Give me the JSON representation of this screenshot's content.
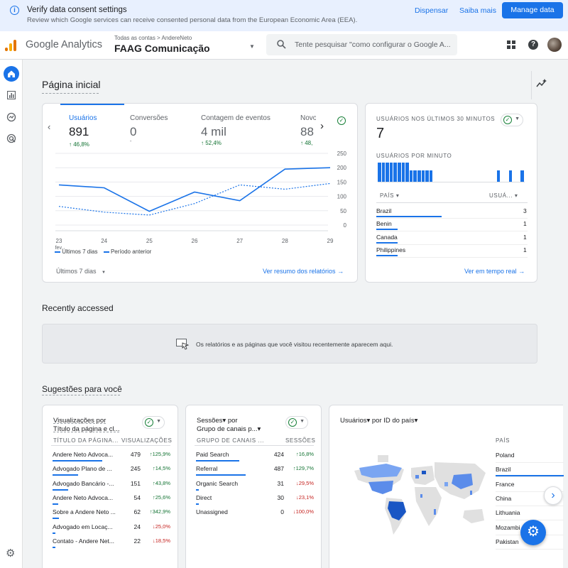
{
  "banner": {
    "title": "Verify data consent settings",
    "subtitle": "Review which Google services can receive consented personal data from the European Economic Area (EEA).",
    "dismiss": "Dispensar",
    "learn": "Saiba mais",
    "manage": "Manage data"
  },
  "header": {
    "app": "Google Analytics",
    "crumb": "Todas as contas > AndereNeto",
    "property": "FAAG Comunicação",
    "search_placeholder": "Tente pesquisar \"como configurar o Google A..."
  },
  "page_title": "Página inicial",
  "metrics": [
    {
      "label": "Usuários",
      "value": "891",
      "delta": "↑ 46,8%"
    },
    {
      "label": "Conversões",
      "value": "0",
      "delta": "-"
    },
    {
      "label": "Contagem de eventos",
      "value": "4 mil",
      "delta": "↑ 52,4%"
    },
    {
      "label": "Novo",
      "value": "88",
      "delta": "↑ 48,"
    }
  ],
  "chart_data": {
    "type": "line",
    "x": [
      "23 fev.",
      "24",
      "25",
      "26",
      "27",
      "28",
      "29"
    ],
    "xticks": [
      "23",
      "24",
      "25",
      "26",
      "27",
      "28",
      "29"
    ],
    "xsub": "fev.",
    "yticks": [
      "250",
      "200",
      "150",
      "100",
      "50",
      "0"
    ],
    "ylim": [
      0,
      250
    ],
    "series": [
      {
        "name": "Últimos 7 dias",
        "values": [
          140,
          130,
          48,
          115,
          85,
          195,
          200
        ]
      },
      {
        "name": "Período anterior",
        "values": [
          65,
          45,
          35,
          75,
          140,
          125,
          145
        ]
      }
    ]
  },
  "legend": {
    "current": "Últimos 7 dias",
    "previous": "Período anterior"
  },
  "range_label": "Últimos 7 dias",
  "view_reports": "Ver resumo dos relatórios",
  "realtime": {
    "title": "USUÁRIOS NOS ÚLTIMOS 30 MINUTOS",
    "value": "7",
    "per_minute": "USUÁRIOS POR MINUTO",
    "bars": [
      1,
      1,
      1,
      1,
      1,
      1,
      1,
      1,
      0.6,
      0.6,
      0.6,
      0.6,
      0.6,
      0.6,
      0,
      0,
      0,
      0,
      0,
      0,
      0,
      0,
      0,
      0,
      0,
      0,
      0,
      0,
      0,
      0,
      0.6,
      0,
      0,
      0.6,
      0,
      0,
      0.6
    ],
    "col_country": "PAÍS",
    "col_users": "USUÁ...",
    "rows": [
      {
        "name": "Brazil",
        "value": "3",
        "frac": 1
      },
      {
        "name": "Benin",
        "value": "1",
        "frac": 0.33
      },
      {
        "name": "Canada",
        "value": "1",
        "frac": 0.33
      },
      {
        "name": "Philippines",
        "value": "1",
        "frac": 0.33
      }
    ],
    "link": "Ver em tempo real"
  },
  "recent": {
    "title": "Recently accessed",
    "empty": "Os relatórios e as páginas que você visitou recentemente aparecem aqui."
  },
  "suggest_title": "Sugestões para você",
  "card1": {
    "title1": "Visualizações por",
    "title2": "Título da página e cl...",
    "col1": "TÍTULO DA PÁGINA...",
    "col2": "VISUALIZAÇÕES",
    "rows": [
      {
        "name": "Andere Neto Advoca...",
        "value": "479",
        "delta": "↑125,9%",
        "up": true,
        "frac": 1
      },
      {
        "name": "Advogado Plano de ...",
        "value": "245",
        "delta": "↑14,5%",
        "up": true,
        "frac": 0.51
      },
      {
        "name": "Advogado Bancário -...",
        "value": "151",
        "delta": "↑43,8%",
        "up": true,
        "frac": 0.32
      },
      {
        "name": "Andere Neto Advoca...",
        "value": "54",
        "delta": "↑25,6%",
        "up": true,
        "frac": 0.11
      },
      {
        "name": "Sobre a Andere Neto ...",
        "value": "62",
        "delta": "↑342,9%",
        "up": true,
        "frac": 0.13
      },
      {
        "name": "Advogado em Locaç...",
        "value": "24",
        "delta": "↓25,0%",
        "up": false,
        "frac": 0.05
      },
      {
        "name": "Contato - Andere Net...",
        "value": "22",
        "delta": "↓18,5%",
        "up": false,
        "frac": 0.05
      }
    ]
  },
  "card2": {
    "title1": "Sessões▾ por",
    "title2": "Grupo de canais p...▾",
    "col1": "GRUPO DE CANAIS ...",
    "col2": "SESSÕES",
    "rows": [
      {
        "name": "Paid Search",
        "value": "424",
        "delta": "↑16,8%",
        "up": true,
        "frac": 0.87
      },
      {
        "name": "Referral",
        "value": "487",
        "delta": "↑129,7%",
        "up": true,
        "frac": 1
      },
      {
        "name": "Organic Search",
        "value": "31",
        "delta": "↓29,5%",
        "up": false,
        "frac": 0.06
      },
      {
        "name": "Direct",
        "value": "30",
        "delta": "↓23,1%",
        "up": false,
        "frac": 0.06
      },
      {
        "name": "Unassigned",
        "value": "0",
        "delta": "↓100,0%",
        "up": false,
        "frac": 0
      }
    ]
  },
  "card3": {
    "title": "Usuários▾ por ID do país▾",
    "col": "PAÍS",
    "rows": [
      "Poland",
      "Brazil",
      "France",
      "China",
      "Lithuania",
      "Mozambi",
      "Pakistan"
    ]
  },
  "colors": {
    "accent": "#1a73e8",
    "up": "#137333",
    "down": "#c5221f"
  }
}
